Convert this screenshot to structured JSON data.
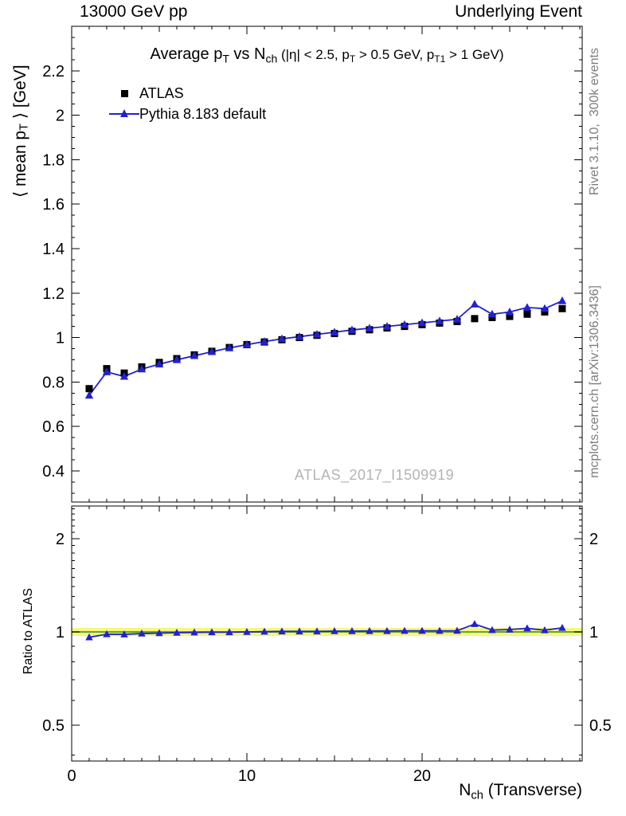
{
  "header": {
    "left_label": "13000 GeV pp",
    "right_label": "Underlying Event"
  },
  "rich": {
    "title": [
      {
        "t": "Average p"
      },
      {
        "t": "T",
        "s": "sub"
      },
      {
        "t": " vs N"
      },
      {
        "t": "ch",
        "s": "sub"
      },
      {
        "t": "  (|η| < 2.5, p",
        "s": "small"
      },
      {
        "t": "T",
        "s": "smallsub"
      },
      {
        "t": " > 0.5 GeV, p",
        "s": "small"
      },
      {
        "t": "T1",
        "s": "smallsub"
      },
      {
        "t": " > 1 GeV)",
        "s": "small"
      }
    ],
    "y_main_label": [
      {
        "t": "⟨ mean p"
      },
      {
        "t": "T",
        "s": "sub"
      },
      {
        "t": " ⟩ [GeV]"
      }
    ],
    "x_label": [
      {
        "t": "N"
      },
      {
        "t": "ch",
        "s": "sub"
      },
      {
        "t": " (Transverse)"
      }
    ]
  },
  "labels": {
    "ratio_axis": "Ratio to ATLAS",
    "watermark": "ATLAS_2017_I1509919",
    "rivet_note": "Rivet 3.1.10,  300k events",
    "mcplots_note": "mcplots.cern.ch [arXiv:1306.3436]"
  },
  "chart_data": {
    "type": "scatter",
    "title": "Average pT vs Nch (|eta| < 2.5, pT > 0.5 GeV, pT1 > 1 GeV)",
    "xlabel": "Nch (Transverse)",
    "ylabel": "<mean pT> [GeV]",
    "ratio_ylabel": "Ratio to ATLAS",
    "legend_position": "top-left",
    "grid": false,
    "xlim": [
      0,
      29.14
    ],
    "ylim_main": [
      0.26,
      2.4
    ],
    "ylim_ratio": [
      0.383,
      2.55
    ],
    "ratio_scale": "log",
    "x_ticks": [
      0,
      10,
      20
    ],
    "y_ticks_main": [
      0.4,
      0.6,
      0.8,
      1,
      1.2,
      1.4,
      1.6,
      1.8,
      2,
      2.2
    ],
    "y_ticks_ratio": [
      0.5,
      1,
      2
    ],
    "x": [
      1,
      2,
      3,
      4,
      5,
      6,
      7,
      8,
      9,
      10,
      11,
      12,
      13,
      14,
      15,
      16,
      17,
      18,
      19,
      20,
      21,
      22,
      23,
      24,
      25,
      26,
      27,
      28
    ],
    "series": [
      {
        "name": "ATLAS",
        "style": "markers",
        "marker": "square",
        "color": "#000000",
        "values": [
          0.77,
          0.86,
          0.84,
          0.868,
          0.888,
          0.905,
          0.922,
          0.938,
          0.955,
          0.968,
          0.98,
          0.99,
          1.0,
          1.01,
          1.018,
          1.028,
          1.035,
          1.043,
          1.05,
          1.058,
          1.065,
          1.072,
          1.085,
          1.09,
          1.095,
          1.105,
          1.115,
          1.13
        ]
      },
      {
        "name": "Pythia 8.183 default",
        "style": "line+markers",
        "marker": "triangle",
        "color": "#2222cc",
        "values": [
          0.74,
          0.845,
          0.825,
          0.858,
          0.88,
          0.9,
          0.918,
          0.936,
          0.953,
          0.968,
          0.982,
          0.994,
          1.004,
          1.014,
          1.024,
          1.034,
          1.042,
          1.05,
          1.058,
          1.066,
          1.074,
          1.082,
          1.15,
          1.105,
          1.115,
          1.135,
          1.13,
          1.165
        ]
      }
    ],
    "ratio": {
      "reference": "ATLAS",
      "band_halfwidth": 0.03,
      "band_color": "#f4f77e",
      "line_color": "#63a52f",
      "series": [
        {
          "name": "Pythia 8.183 default / ATLAS",
          "color": "#2222cc",
          "marker": "triangle",
          "values": [
            0.961,
            0.983,
            0.982,
            0.988,
            0.991,
            0.994,
            0.996,
            0.998,
            0.998,
            1.0,
            1.002,
            1.004,
            1.004,
            1.004,
            1.006,
            1.006,
            1.007,
            1.007,
            1.008,
            1.008,
            1.008,
            1.009,
            1.06,
            1.014,
            1.018,
            1.027,
            1.013,
            1.031
          ]
        }
      ]
    }
  }
}
